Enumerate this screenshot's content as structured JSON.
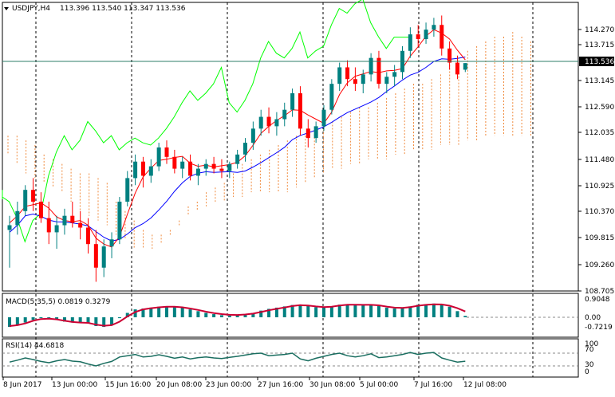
{
  "header": {
    "symbol": "USDJPY,H4",
    "ohlc": "113.396 113.540 113.347 113.536",
    "dropdown_icon": "triangle-down-icon"
  },
  "chart_data": {
    "type": "candlestick",
    "main": {
      "price_ticks": [
        "114.270",
        "113.715",
        "113.145",
        "112.590",
        "112.035",
        "111.480",
        "110.925",
        "110.370",
        "109.815",
        "109.260",
        "108.705"
      ],
      "current_price": "113.536",
      "ylim": [
        108.705,
        114.6
      ],
      "series_colors": {
        "tenkan": "#ff0000",
        "kijun": "#0000ff",
        "chikou": "#00ff00",
        "bull": "#008080",
        "bear": "#ff0000",
        "cloud_a": "#e9c5d2",
        "cloud_b": "#f08a3c"
      },
      "candles": [
        {
          "t": 0,
          "o": 110.0,
          "h": 110.3,
          "l": 109.2,
          "c": 110.1
        },
        {
          "t": 1,
          "o": 110.1,
          "h": 110.6,
          "l": 109.9,
          "c": 110.4
        },
        {
          "t": 2,
          "o": 110.4,
          "h": 110.95,
          "l": 110.3,
          "c": 110.85
        },
        {
          "t": 3,
          "o": 110.85,
          "h": 111.1,
          "l": 110.4,
          "c": 110.6
        },
        {
          "t": 4,
          "o": 110.6,
          "h": 110.8,
          "l": 110.15,
          "c": 110.25
        },
        {
          "t": 5,
          "o": 110.25,
          "h": 110.6,
          "l": 109.7,
          "c": 109.95
        },
        {
          "t": 6,
          "o": 109.95,
          "h": 110.3,
          "l": 109.6,
          "c": 110.1
        },
        {
          "t": 7,
          "o": 110.1,
          "h": 110.45,
          "l": 109.9,
          "c": 110.3
        },
        {
          "t": 8,
          "o": 110.3,
          "h": 110.6,
          "l": 110.05,
          "c": 110.15
        },
        {
          "t": 9,
          "o": 110.15,
          "h": 110.4,
          "l": 109.8,
          "c": 110.05
        },
        {
          "t": 10,
          "o": 110.05,
          "h": 110.25,
          "l": 109.5,
          "c": 109.7
        },
        {
          "t": 11,
          "o": 109.7,
          "h": 110.0,
          "l": 108.9,
          "c": 109.2
        },
        {
          "t": 12,
          "o": 109.2,
          "h": 109.8,
          "l": 109.0,
          "c": 109.65
        },
        {
          "t": 13,
          "o": 109.65,
          "h": 109.95,
          "l": 109.4,
          "c": 109.8
        },
        {
          "t": 14,
          "o": 109.8,
          "h": 110.7,
          "l": 109.7,
          "c": 110.6
        },
        {
          "t": 15,
          "o": 110.6,
          "h": 111.25,
          "l": 110.5,
          "c": 111.1
        },
        {
          "t": 16,
          "o": 111.1,
          "h": 111.6,
          "l": 110.95,
          "c": 111.45
        },
        {
          "t": 17,
          "o": 111.45,
          "h": 111.55,
          "l": 110.9,
          "c": 111.15
        },
        {
          "t": 18,
          "o": 111.15,
          "h": 111.5,
          "l": 111.0,
          "c": 111.35
        },
        {
          "t": 19,
          "o": 111.35,
          "h": 111.85,
          "l": 111.25,
          "c": 111.75
        },
        {
          "t": 20,
          "o": 111.75,
          "h": 111.9,
          "l": 111.4,
          "c": 111.55
        },
        {
          "t": 21,
          "o": 111.55,
          "h": 111.7,
          "l": 111.2,
          "c": 111.3
        },
        {
          "t": 22,
          "o": 111.3,
          "h": 111.55,
          "l": 111.1,
          "c": 111.45
        },
        {
          "t": 23,
          "o": 111.45,
          "h": 111.6,
          "l": 111.05,
          "c": 111.15
        },
        {
          "t": 24,
          "o": 111.15,
          "h": 111.4,
          "l": 110.95,
          "c": 111.3
        },
        {
          "t": 25,
          "o": 111.3,
          "h": 111.5,
          "l": 111.15,
          "c": 111.4
        },
        {
          "t": 26,
          "o": 111.4,
          "h": 111.55,
          "l": 111.2,
          "c": 111.3
        },
        {
          "t": 27,
          "o": 111.3,
          "h": 111.5,
          "l": 111.1,
          "c": 111.25
        },
        {
          "t": 28,
          "o": 111.25,
          "h": 111.45,
          "l": 111.1,
          "c": 111.4
        },
        {
          "t": 29,
          "o": 111.4,
          "h": 111.7,
          "l": 111.3,
          "c": 111.6
        },
        {
          "t": 30,
          "o": 111.6,
          "h": 111.95,
          "l": 111.45,
          "c": 111.85
        },
        {
          "t": 31,
          "o": 111.85,
          "h": 112.3,
          "l": 111.7,
          "c": 112.15
        },
        {
          "t": 32,
          "o": 112.15,
          "h": 112.55,
          "l": 112.0,
          "c": 112.4
        },
        {
          "t": 33,
          "o": 112.4,
          "h": 112.6,
          "l": 112.05,
          "c": 112.2
        },
        {
          "t": 34,
          "o": 112.2,
          "h": 112.5,
          "l": 112.0,
          "c": 112.35
        },
        {
          "t": 35,
          "o": 112.35,
          "h": 112.7,
          "l": 112.2,
          "c": 112.55
        },
        {
          "t": 36,
          "o": 112.55,
          "h": 113.0,
          "l": 112.4,
          "c": 112.9
        },
        {
          "t": 37,
          "o": 112.9,
          "h": 113.05,
          "l": 112.0,
          "c": 112.15
        },
        {
          "t": 38,
          "o": 112.15,
          "h": 112.35,
          "l": 111.75,
          "c": 111.95
        },
        {
          "t": 39,
          "o": 111.95,
          "h": 112.3,
          "l": 111.85,
          "c": 112.2
        },
        {
          "t": 40,
          "o": 112.2,
          "h": 112.65,
          "l": 112.1,
          "c": 112.55
        },
        {
          "t": 41,
          "o": 112.55,
          "h": 113.2,
          "l": 112.45,
          "c": 113.1
        },
        {
          "t": 42,
          "o": 113.1,
          "h": 113.55,
          "l": 112.95,
          "c": 113.45
        },
        {
          "t": 43,
          "o": 113.45,
          "h": 113.6,
          "l": 113.05,
          "c": 113.2
        },
        {
          "t": 44,
          "o": 113.2,
          "h": 113.45,
          "l": 112.95,
          "c": 113.1
        },
        {
          "t": 45,
          "o": 113.1,
          "h": 113.4,
          "l": 112.9,
          "c": 113.3
        },
        {
          "t": 46,
          "o": 113.3,
          "h": 113.75,
          "l": 113.15,
          "c": 113.65
        },
        {
          "t": 47,
          "o": 113.65,
          "h": 113.8,
          "l": 113.0,
          "c": 113.1
        },
        {
          "t": 48,
          "o": 113.1,
          "h": 113.35,
          "l": 112.9,
          "c": 113.25
        },
        {
          "t": 49,
          "o": 113.25,
          "h": 113.5,
          "l": 113.05,
          "c": 113.35
        },
        {
          "t": 50,
          "o": 113.35,
          "h": 113.9,
          "l": 113.2,
          "c": 113.8
        },
        {
          "t": 51,
          "o": 113.8,
          "h": 114.3,
          "l": 113.65,
          "c": 114.15
        },
        {
          "t": 52,
          "o": 114.15,
          "h": 114.35,
          "l": 113.9,
          "c": 114.05
        },
        {
          "t": 53,
          "o": 114.05,
          "h": 114.4,
          "l": 113.95,
          "c": 114.25
        },
        {
          "t": 54,
          "o": 114.25,
          "h": 114.5,
          "l": 114.1,
          "c": 114.35
        },
        {
          "t": 55,
          "o": 114.35,
          "h": 114.55,
          "l": 113.7,
          "c": 113.85
        },
        {
          "t": 56,
          "o": 113.85,
          "h": 114.0,
          "l": 113.4,
          "c": 113.55
        },
        {
          "t": 57,
          "o": 113.55,
          "h": 113.7,
          "l": 113.2,
          "c": 113.3
        },
        {
          "t": 58,
          "o": 113.4,
          "h": 113.54,
          "l": 113.35,
          "c": 113.54
        }
      ],
      "time_labels": [
        "8 Jun 2017",
        "13 Jun 00:00",
        "15 Jun 16:00",
        "20 Jun 08:00",
        "23 Jun 00:00",
        "27 Jun 16:00",
        "30 Jun 08:00",
        "5 Jul 00:00",
        "7 Jul 16:00",
        "12 Jul 08:00"
      ]
    },
    "macd": {
      "label": "MACD(5,35,5) 0.0819 0.3279",
      "ticks": [
        "0.9048",
        "0.00",
        "-0.7219"
      ],
      "ylim": [
        -0.7219,
        0.9048
      ],
      "histogram": [
        -0.55,
        -0.45,
        -0.3,
        -0.15,
        -0.05,
        -0.05,
        -0.15,
        -0.25,
        -0.3,
        -0.3,
        -0.35,
        -0.5,
        -0.55,
        -0.45,
        -0.05,
        0.25,
        0.45,
        0.5,
        0.55,
        0.6,
        0.62,
        0.6,
        0.55,
        0.45,
        0.35,
        0.25,
        0.18,
        0.12,
        0.1,
        0.12,
        0.18,
        0.25,
        0.38,
        0.48,
        0.55,
        0.62,
        0.7,
        0.72,
        0.65,
        0.58,
        0.55,
        0.62,
        0.72,
        0.75,
        0.72,
        0.7,
        0.72,
        0.65,
        0.55,
        0.5,
        0.52,
        0.62,
        0.72,
        0.75,
        0.78,
        0.72,
        0.6,
        0.35,
        0.08
      ],
      "signal": [
        -0.5,
        -0.45,
        -0.35,
        -0.2,
        -0.1,
        -0.08,
        -0.12,
        -0.2,
        -0.27,
        -0.3,
        -0.32,
        -0.42,
        -0.48,
        -0.45,
        -0.25,
        0.05,
        0.3,
        0.45,
        0.52,
        0.57,
        0.6,
        0.6,
        0.57,
        0.5,
        0.42,
        0.32,
        0.24,
        0.18,
        0.14,
        0.13,
        0.16,
        0.21,
        0.3,
        0.4,
        0.48,
        0.56,
        0.64,
        0.69,
        0.67,
        0.62,
        0.58,
        0.6,
        0.67,
        0.72,
        0.72,
        0.71,
        0.71,
        0.68,
        0.61,
        0.55,
        0.53,
        0.58,
        0.66,
        0.71,
        0.74,
        0.73,
        0.66,
        0.52,
        0.33
      ]
    },
    "rsi": {
      "label": "RSI(14) 44.6818",
      "ticks": [
        "100",
        "70",
        "30",
        "0"
      ],
      "ylim": [
        0,
        100
      ],
      "values": [
        42,
        48,
        55,
        50,
        44,
        40,
        46,
        50,
        45,
        43,
        36,
        30,
        38,
        44,
        58,
        62,
        66,
        58,
        60,
        65,
        60,
        54,
        58,
        52,
        56,
        58,
        55,
        53,
        57,
        60,
        64,
        68,
        70,
        62,
        64,
        66,
        70,
        52,
        46,
        54,
        60,
        66,
        70,
        62,
        58,
        62,
        68,
        56,
        58,
        62,
        66,
        72,
        66,
        70,
        72,
        55,
        48,
        42,
        44.68
      ]
    }
  }
}
